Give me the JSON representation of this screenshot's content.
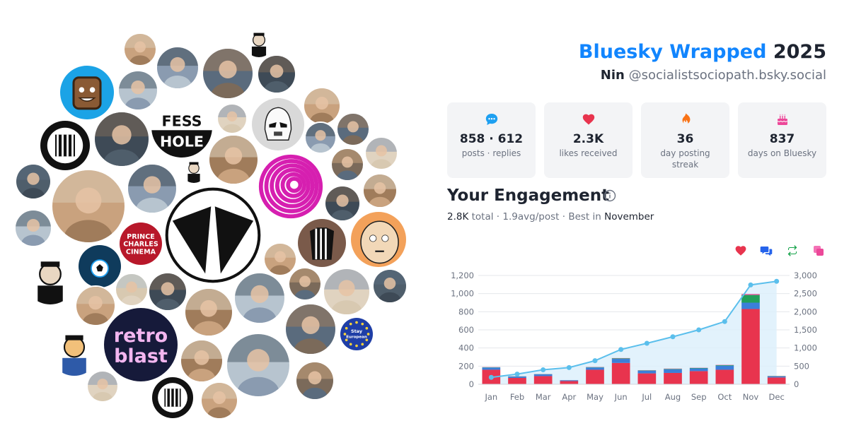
{
  "header": {
    "brand": "Bluesky Wrapped",
    "year": "2025",
    "display_name": "Nin",
    "handle": "@socialistsociopath.bsky.social"
  },
  "stats": [
    {
      "icon": "speech-bubble-icon",
      "value": "858 · 612",
      "label": "posts · replies",
      "color": "#1ea0f1"
    },
    {
      "icon": "heart-icon",
      "value": "2.3K",
      "label": "likes received",
      "color": "#e8344e"
    },
    {
      "icon": "flame-icon",
      "value": "36",
      "label": "day posting streak",
      "color": "#f97316"
    },
    {
      "icon": "cake-icon",
      "value": "837",
      "label": "days on Bluesky",
      "color": "#ec4899"
    }
  ],
  "engagement": {
    "title": "Your Engagement",
    "total": "2.8K",
    "total_label": "total",
    "avg": "1.9",
    "avg_label": "avg/post",
    "best_label": "Best in",
    "best_month": "November",
    "sep": "·"
  },
  "legend": [
    {
      "icon": "heart-icon",
      "color": "#e8344e"
    },
    {
      "icon": "replies-icon",
      "color": "#2563eb"
    },
    {
      "icon": "repost-icon",
      "color": "#16a34a"
    },
    {
      "icon": "quote-icon",
      "color": "#ec4899"
    }
  ],
  "chart_data": {
    "type": "bar",
    "categories": [
      "Jan",
      "Feb",
      "Mar",
      "Apr",
      "May",
      "Jun",
      "Jul",
      "Aug",
      "Sep",
      "Oct",
      "Nov",
      "Dec"
    ],
    "series": [
      {
        "values": [
          160,
          70,
          90,
          35,
          160,
          235,
          120,
          125,
          145,
          160,
          830,
          75
        ],
        "color": "#e8344e",
        "axis": "left"
      },
      {
        "values": [
          25,
          15,
          20,
          8,
          25,
          45,
          30,
          40,
          30,
          45,
          70,
          12
        ],
        "color": "#3b7fd9",
        "axis": "left"
      },
      {
        "values": [
          3,
          2,
          2,
          1,
          4,
          6,
          4,
          5,
          5,
          6,
          85,
          3
        ],
        "color": "#22a05a",
        "axis": "left"
      },
      {
        "values": [
          2,
          1,
          1,
          1,
          2,
          3,
          2,
          3,
          2,
          3,
          10,
          2
        ],
        "color": "#ec4899",
        "axis": "left"
      },
      {
        "type": "area-line",
        "values": [
          190,
          280,
          400,
          460,
          650,
          960,
          1130,
          1310,
          1500,
          1730,
          2740,
          2840
        ],
        "color": "#5bbfec",
        "axis": "right"
      }
    ],
    "y_left": {
      "min": 0,
      "max": 1200,
      "ticks": [
        0,
        200,
        400,
        600,
        800,
        1000,
        1200
      ],
      "tick_labels": [
        "0",
        "200",
        "400",
        "600",
        "800",
        "1,000",
        "1,200"
      ]
    },
    "y_right": {
      "min": 0,
      "max": 3000,
      "ticks": [
        0,
        500,
        1000,
        1500,
        2000,
        2500,
        3000
      ],
      "tick_labels": [
        "0",
        "500",
        "1,000",
        "1,500",
        "2,000",
        "2,500",
        "3,000"
      ]
    },
    "grid": true,
    "legend_position": "top-right"
  },
  "avatar_cloud": {
    "palette": [
      "#c9a27e",
      "#8a9bb0",
      "#5a6b7d",
      "#d8c9b1",
      "#3e4a56",
      "#a07c5b",
      "#b7c4cf",
      "#7b6a5a",
      "#e0d3c0",
      "#4f5e6b"
    ],
    "texts": {
      "fess": "FESS",
      "hole": "HOLE",
      "prince": "PRINCE",
      "charles": "CHARLES",
      "cinema": "CINEMA",
      "retro": "retro",
      "blast": "blast",
      "stay": "Stay",
      "european": "European"
    }
  }
}
